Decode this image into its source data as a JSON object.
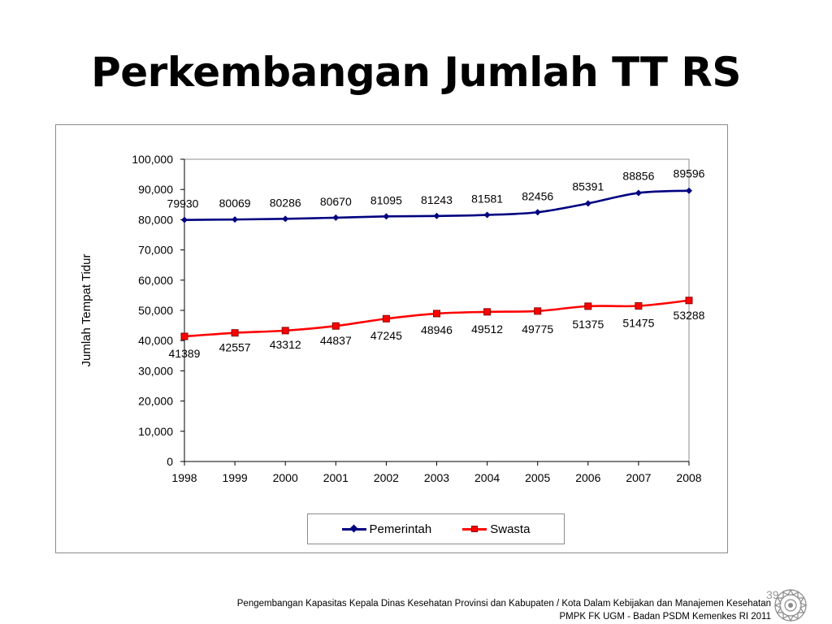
{
  "slide": {
    "title": "Perkembangan Jumlah TT RS",
    "page_number": "39",
    "footer_line1": "Pengembangan Kapasitas Kepala Dinas Kesehatan Provinsi dan Kabupaten / Kota  Dalam Kebijakan dan Manajemen Kesehatan",
    "footer_line2": "PMPK FK UGM - Badan PSDM Kemenkes  RI 2011"
  },
  "chart_data": {
    "type": "line",
    "title": "",
    "xlabel": "",
    "ylabel": "Jumlah Tempat Tidur",
    "categories": [
      "1998",
      "1999",
      "2000",
      "2001",
      "2002",
      "2003",
      "2004",
      "2005",
      "2006",
      "2007",
      "2008"
    ],
    "ylim": [
      0,
      100000
    ],
    "yticks": [
      0,
      10000,
      20000,
      30000,
      40000,
      50000,
      60000,
      70000,
      80000,
      90000,
      100000
    ],
    "ytick_labels": [
      "0",
      "10,000",
      "20,000",
      "30,000",
      "40,000",
      "50,000",
      "60,000",
      "70,000",
      "80,000",
      "90,000",
      "100,000"
    ],
    "grid": false,
    "legend_position": "bottom",
    "series": [
      {
        "name": "Pemerintah",
        "color": "#000080",
        "marker": "diamond",
        "values": [
          79930,
          80069,
          80286,
          80670,
          81095,
          81243,
          81581,
          82456,
          85391,
          88856,
          89596
        ],
        "labels": [
          "79930",
          "80069",
          "80286",
          "80670",
          "81095",
          "81243",
          "81581",
          "82456",
          "85391",
          "88856",
          "89596"
        ]
      },
      {
        "name": "Swasta",
        "color": "#ff0000",
        "marker": "square",
        "values": [
          41389,
          42557,
          43312,
          44837,
          47245,
          48946,
          49512,
          49775,
          51375,
          51475,
          53288
        ],
        "labels": [
          "41389",
          "42557",
          "43312",
          "44837",
          "47245",
          "48946",
          "49512",
          "49775",
          "51375",
          "51475",
          "53288"
        ]
      }
    ]
  }
}
